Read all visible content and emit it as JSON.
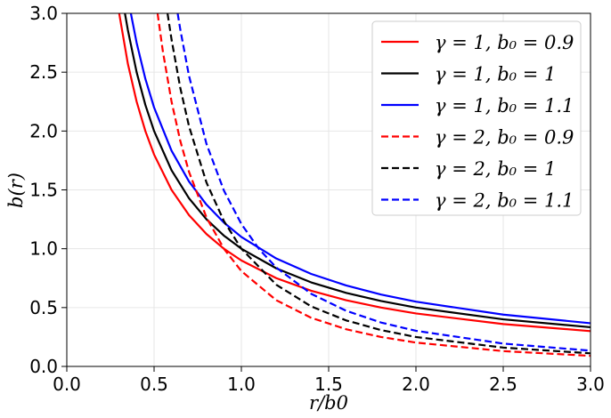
{
  "chart_data": {
    "type": "line",
    "xlabel": "r/b0",
    "ylabel": "b(r)",
    "xlim": [
      0,
      3
    ],
    "ylim": [
      0,
      3
    ],
    "grid": true,
    "legend_placement": "top-right",
    "x_ticks": [
      "0.0",
      "0.5",
      "1.0",
      "1.5",
      "2.0",
      "2.5",
      "3.0"
    ],
    "y_ticks": [
      "0.0",
      "0.5",
      "1.0",
      "1.5",
      "2.0",
      "2.5",
      "3.0"
    ],
    "series": [
      {
        "name": "γ = 1, b₀ = 0.9",
        "color": "#ff0000",
        "dash": "solid",
        "x": [
          0.3,
          0.35,
          0.4,
          0.45,
          0.5,
          0.6,
          0.7,
          0.8,
          0.9,
          1.0,
          1.2,
          1.4,
          1.6,
          1.8,
          2.0,
          2.5,
          3.0
        ],
        "y": [
          3.0,
          2.57,
          2.25,
          2.0,
          1.8,
          1.5,
          1.286,
          1.125,
          1.0,
          0.9,
          0.75,
          0.643,
          0.5625,
          0.5,
          0.45,
          0.36,
          0.3
        ]
      },
      {
        "name": "γ = 1, b₀ = 1",
        "color": "#000000",
        "dash": "solid",
        "x": [
          0.333,
          0.35,
          0.4,
          0.45,
          0.5,
          0.6,
          0.7,
          0.8,
          0.9,
          1.0,
          1.2,
          1.4,
          1.6,
          1.8,
          2.0,
          2.5,
          3.0
        ],
        "y": [
          3.0,
          2.857,
          2.5,
          2.222,
          2.0,
          1.667,
          1.429,
          1.25,
          1.111,
          1.0,
          0.833,
          0.714,
          0.625,
          0.556,
          0.5,
          0.4,
          0.333
        ]
      },
      {
        "name": "γ = 1, b₀ = 1.1",
        "color": "#0000ff",
        "dash": "solid",
        "x": [
          0.367,
          0.4,
          0.45,
          0.5,
          0.6,
          0.7,
          0.8,
          0.9,
          1.0,
          1.2,
          1.4,
          1.6,
          1.8,
          2.0,
          2.5,
          3.0
        ],
        "y": [
          3.0,
          2.75,
          2.444,
          2.2,
          1.833,
          1.571,
          1.375,
          1.222,
          1.1,
          0.917,
          0.786,
          0.688,
          0.611,
          0.55,
          0.44,
          0.367
        ]
      },
      {
        "name": "γ = 2, b₀ = 0.9",
        "color": "#ff0000",
        "dash": "dashed",
        "x": [
          0.52,
          0.55,
          0.6,
          0.65,
          0.7,
          0.8,
          0.9,
          1.0,
          1.2,
          1.4,
          1.6,
          1.8,
          2.0,
          2.5,
          3.0
        ],
        "y": [
          3.0,
          2.68,
          2.25,
          1.917,
          1.653,
          1.266,
          1.0,
          0.81,
          0.5625,
          0.413,
          0.316,
          0.25,
          0.2025,
          0.13,
          0.09
        ]
      },
      {
        "name": "γ = 2, b₀ = 1",
        "color": "#000000",
        "dash": "dashed",
        "x": [
          0.577,
          0.6,
          0.65,
          0.7,
          0.8,
          0.9,
          1.0,
          1.2,
          1.4,
          1.6,
          1.8,
          2.0,
          2.5,
          3.0
        ],
        "y": [
          3.0,
          2.778,
          2.367,
          2.041,
          1.5625,
          1.235,
          1.0,
          0.694,
          0.51,
          0.391,
          0.309,
          0.25,
          0.16,
          0.111
        ]
      },
      {
        "name": "γ = 2, b₀ = 1.1",
        "color": "#0000ff",
        "dash": "dashed",
        "x": [
          0.635,
          0.65,
          0.7,
          0.8,
          0.9,
          1.0,
          1.1,
          1.2,
          1.4,
          1.6,
          1.8,
          2.0,
          2.5,
          3.0
        ],
        "y": [
          3.0,
          2.864,
          2.469,
          1.891,
          1.494,
          1.21,
          1.0,
          0.84,
          0.617,
          0.473,
          0.373,
          0.3025,
          0.194,
          0.134
        ]
      }
    ]
  }
}
